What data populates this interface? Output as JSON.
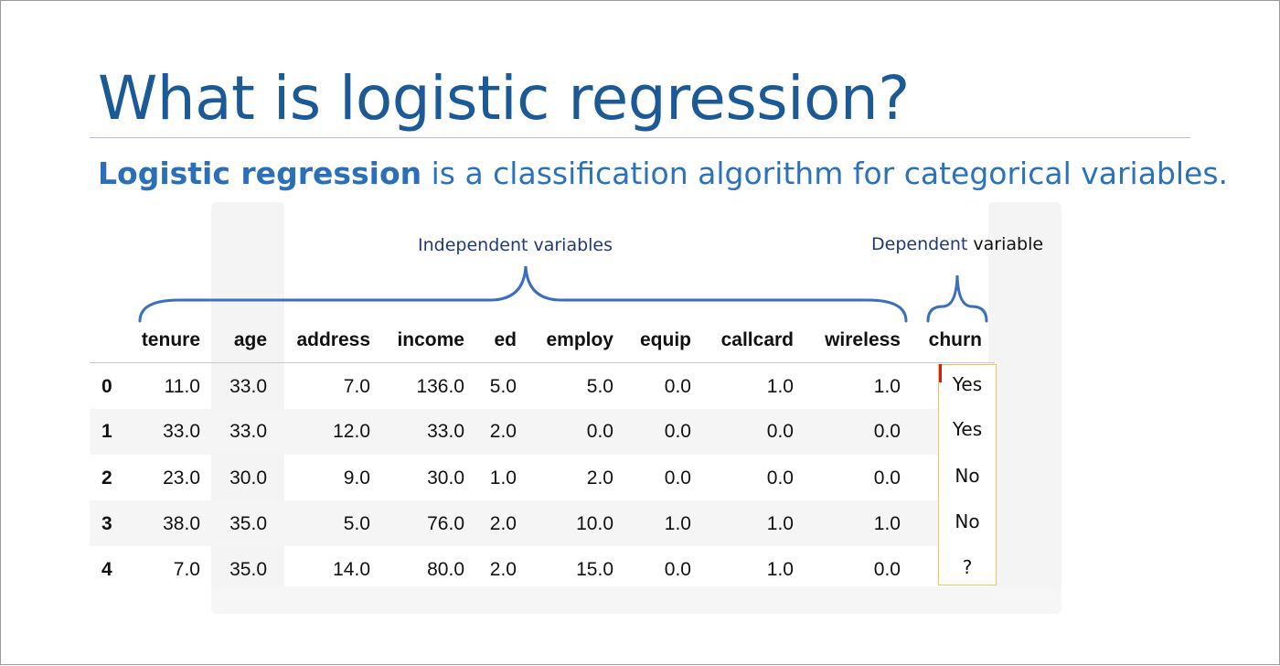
{
  "slide": {
    "title": "What is logistic regression?",
    "subtitle_bold": "Logistic regression",
    "subtitle_rest": " is a classification algorithm for categorical variables.",
    "independent_label": "Independent variables",
    "dependent_label_part1": "Dependent ",
    "dependent_label_part2": "variable"
  },
  "table": {
    "columns": [
      "tenure",
      "age",
      "address",
      "income",
      "ed",
      "employ",
      "equip",
      "callcard",
      "wireless",
      "churn"
    ],
    "rows": [
      {
        "index": "0",
        "values": [
          "11.0",
          "33.0",
          "7.0",
          "136.0",
          "5.0",
          "5.0",
          "0.0",
          "1.0",
          "1.0"
        ],
        "churn": "Yes"
      },
      {
        "index": "1",
        "values": [
          "33.0",
          "33.0",
          "12.0",
          "33.0",
          "2.0",
          "0.0",
          "0.0",
          "0.0",
          "0.0"
        ],
        "churn": "Yes"
      },
      {
        "index": "2",
        "values": [
          "23.0",
          "30.0",
          "9.0",
          "30.0",
          "1.0",
          "2.0",
          "0.0",
          "0.0",
          "0.0"
        ],
        "churn": "No"
      },
      {
        "index": "3",
        "values": [
          "38.0",
          "35.0",
          "5.0",
          "76.0",
          "2.0",
          "10.0",
          "1.0",
          "1.0",
          "1.0"
        ],
        "churn": "No"
      },
      {
        "index": "4",
        "values": [
          "7.0",
          "35.0",
          "14.0",
          "80.0",
          "2.0",
          "15.0",
          "0.0",
          "1.0",
          "0.0"
        ],
        "churn": "?"
      }
    ]
  },
  "colors": {
    "title": "#1b5a96",
    "subtitle": "#2a72bd",
    "brace": "#3a6fc0",
    "churn_box_border": "#f0c25a",
    "cursor": "#d11d1d"
  }
}
